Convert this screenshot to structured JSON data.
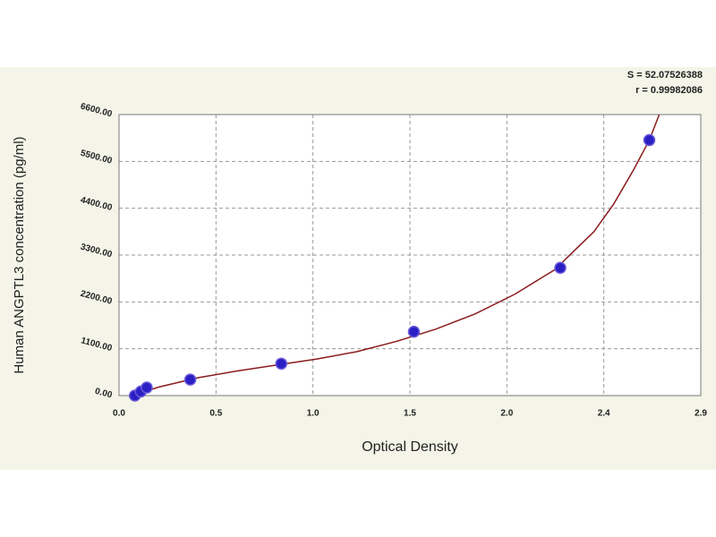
{
  "chart_data": {
    "type": "scatter",
    "x_label": "Optical Density",
    "y_label": "Human ANGPTL3 concentration (pg/ml)",
    "annotations": [
      "S = 52.07526388",
      "r = 0.99982086"
    ],
    "series": [
      {
        "color": "#2a1fc4",
        "x": [
          0.08,
          0.11,
          0.14,
          0.36,
          0.82,
          1.49,
          2.23,
          2.68
        ],
        "values": [
          0,
          94,
          188,
          375,
          750,
          1500,
          3000,
          6000
        ]
      }
    ],
    "fit": {
      "color": "#8b1c1c",
      "x": [
        0.07,
        0.2,
        0.4,
        0.6,
        0.8,
        1.0,
        1.2,
        1.4,
        1.6,
        1.8,
        2.0,
        2.2,
        2.4,
        2.5,
        2.6,
        2.68,
        2.73
      ],
      "values": [
        0,
        200,
        420,
        580,
        720,
        860,
        1030,
        1270,
        1560,
        1920,
        2380,
        2950,
        3850,
        4500,
        5300,
        6000,
        6600
      ]
    },
    "xlim": [
      0,
      2.94
    ],
    "xticks": [
      {
        "value": 0,
        "label": "0.0"
      },
      {
        "value": 0.49,
        "label": "0.5"
      },
      {
        "value": 0.98,
        "label": "1.0"
      },
      {
        "value": 1.47,
        "label": "1.5"
      },
      {
        "value": 1.96,
        "label": "2.0"
      },
      {
        "value": 2.45,
        "label": "2.4"
      },
      {
        "value": 2.94,
        "label": "2.9"
      }
    ],
    "ylim": [
      0,
      6600
    ],
    "yticks": [
      {
        "value": 0,
        "label": "0.00"
      },
      {
        "value": 1100,
        "label": "1100.00"
      },
      {
        "value": 2200,
        "label": "2200.00"
      },
      {
        "value": 3300,
        "label": "3300.00"
      },
      {
        "value": 4400,
        "label": "4400.00"
      },
      {
        "value": 5500,
        "label": "5500.00"
      },
      {
        "value": 6600,
        "label": "6600.00"
      }
    ],
    "grid": true
  }
}
